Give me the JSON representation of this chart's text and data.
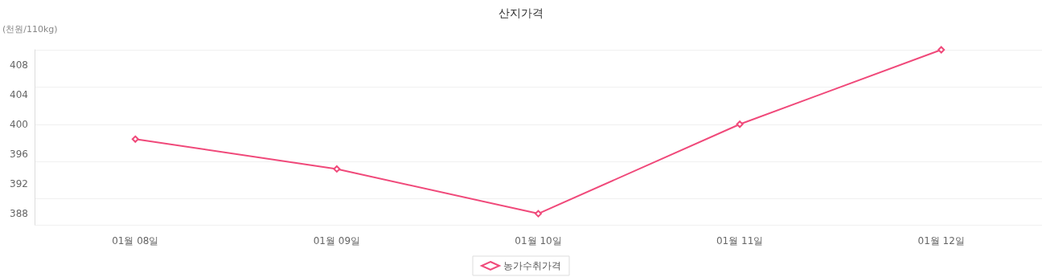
{
  "chart_data": {
    "type": "line",
    "title": "산지가격",
    "ylabel": "(천원/110kg)",
    "categories": [
      "01월 08일",
      "01월 09일",
      "01월 10일",
      "01월 11일",
      "01월 12일"
    ],
    "series": [
      {
        "name": "농가수취가격",
        "color": "#f0497a",
        "values": [
          398,
          394,
          388,
          400,
          410
        ]
      }
    ],
    "ylim": [
      386.5,
      410
    ],
    "yticks": [
      388,
      392,
      396,
      400,
      404,
      408
    ],
    "grid": "y",
    "legend": "bottom",
    "marker": "diamond",
    "line_style": "solid"
  }
}
